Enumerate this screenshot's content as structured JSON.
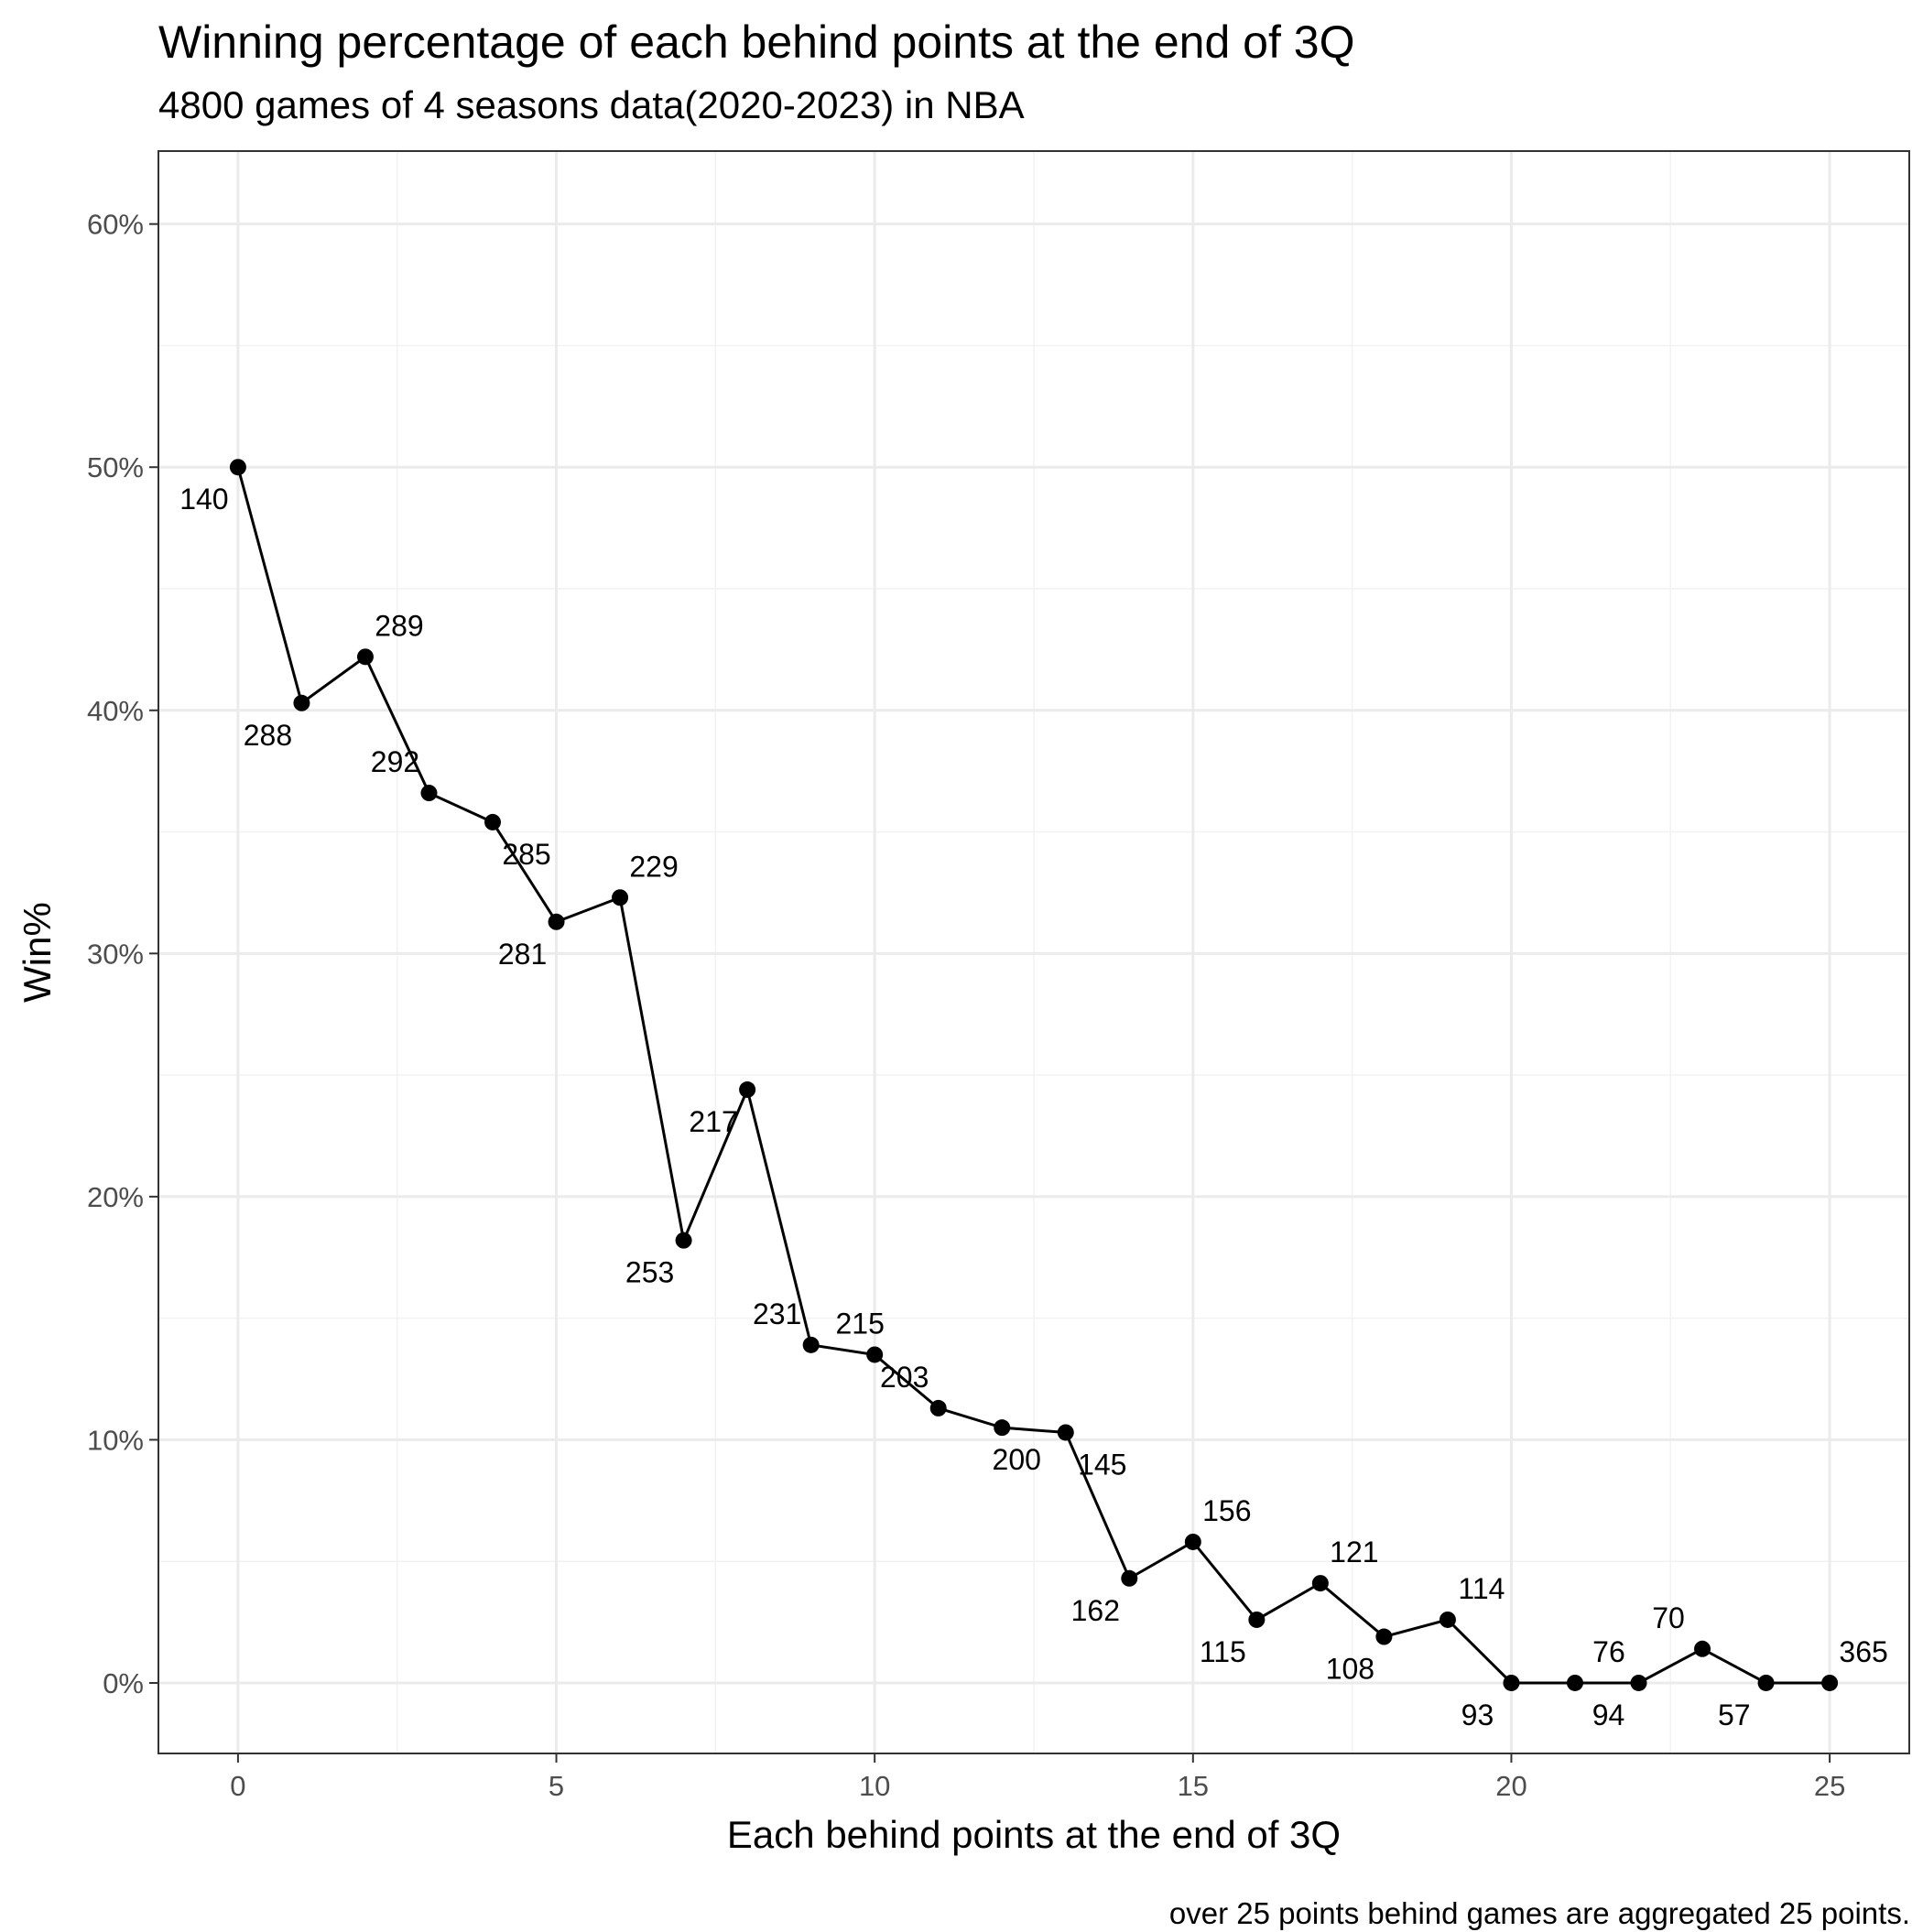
{
  "chart_data": {
    "type": "line",
    "title": "Winning percentage of each behind points at the end of 3Q",
    "subtitle": "4800 games of 4 seasons data(2020-2023) in NBA",
    "xlabel": "Each behind points at the end of 3Q",
    "ylabel": "Win%",
    "caption": "over 25 points behind games are aggregated 25 points.",
    "xlim": [
      -1.25,
      26.25
    ],
    "ylim": [
      -2.9,
      63
    ],
    "x_ticks": [
      0,
      5,
      10,
      15,
      20,
      25
    ],
    "x_tick_labels": [
      "0",
      "5",
      "10",
      "15",
      "20",
      "25"
    ],
    "y_ticks": [
      0,
      10,
      20,
      30,
      40,
      50,
      60
    ],
    "y_tick_labels": [
      "0%",
      "10%",
      "20%",
      "30%",
      "40%",
      "50%",
      "60%"
    ],
    "grid": true,
    "legend": "none",
    "x": [
      0,
      1,
      2,
      3,
      4,
      5,
      6,
      7,
      8,
      9,
      10,
      11,
      12,
      13,
      14,
      15,
      16,
      17,
      18,
      19,
      20,
      21,
      22,
      23,
      24,
      25
    ],
    "values": [
      50.0,
      40.3,
      42.2,
      36.6,
      35.4,
      31.3,
      32.3,
      18.2,
      24.4,
      13.9,
      13.5,
      11.3,
      10.5,
      10.3,
      4.3,
      5.8,
      2.6,
      4.1,
      1.9,
      2.6,
      0.0,
      0.0,
      0.0,
      1.4,
      0.0,
      0.0
    ],
    "labels": [
      "140",
      "288",
      "289",
      "292",
      "285",
      "281",
      "229",
      "253",
      "217",
      "231",
      "215",
      "203",
      "200",
      "145",
      "162",
      "156",
      "115",
      "121",
      "108",
      "114",
      "93",
      "76",
      "94",
      "70",
      "57",
      "365"
    ],
    "line_color": "#000000",
    "point_color": "#000000"
  }
}
